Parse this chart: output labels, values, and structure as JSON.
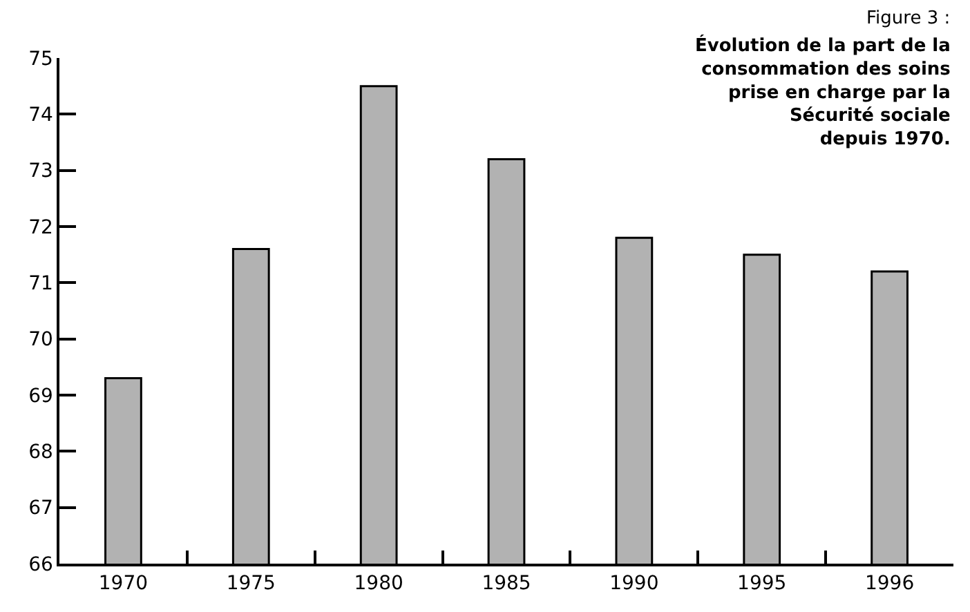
{
  "chart_data": {
    "type": "bar",
    "title": "Figure 3 :",
    "subtitle": "Évolution de la part de la\nconsommation des soins\nprise en charge par la\nSécurité sociale\ndepuis 1970.",
    "categories": [
      "1970",
      "1975",
      "1980",
      "1985",
      "1990",
      "1995",
      "1996"
    ],
    "values": [
      69.3,
      71.6,
      74.5,
      73.2,
      71.8,
      71.5,
      71.2
    ],
    "color": "#b2b2b2",
    "ylim": [
      66,
      75
    ],
    "yticks": [
      66,
      67,
      68,
      69,
      70,
      71,
      72,
      73,
      74,
      75
    ]
  }
}
